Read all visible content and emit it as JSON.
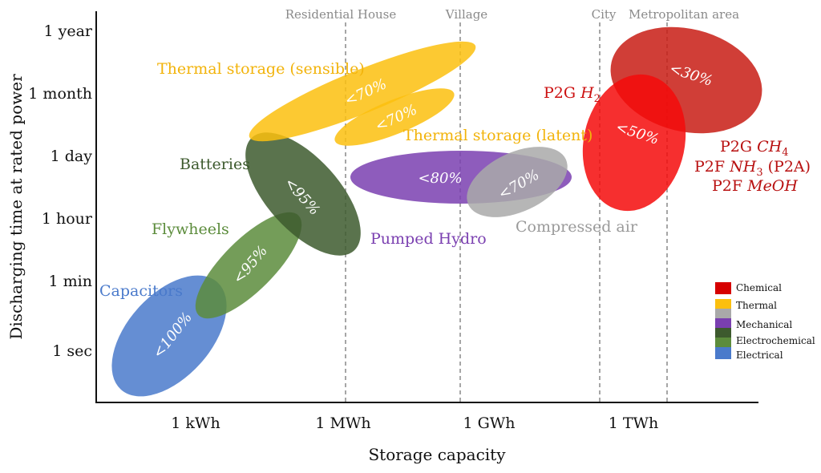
{
  "chart_data": {
    "type": "scatter",
    "xlabel": "Storage capacity",
    "ylabel": "Discharging time at rated power",
    "x_ticks": [
      "1 kWh",
      "1 MWh",
      "1 GWh",
      "1 TWh"
    ],
    "y_ticks": [
      "1 sec",
      "1 min",
      "1 hour",
      "1 day",
      "1 month",
      "1 year"
    ],
    "reference_lines": [
      "Residential House",
      "Village",
      "City",
      "Metropolitan area"
    ],
    "grid": false,
    "legend_position": "bottom-right",
    "legend": [
      {
        "name": "Chemical",
        "color": "#d60000"
      },
      {
        "name": "Thermal",
        "color": "#fbbf0e"
      },
      {
        "name": "",
        "color": "#a9a9a9"
      },
      {
        "name": "Mechanical",
        "color": "#7a3fb0"
      },
      {
        "name": "Electrochemical",
        "color": "#3d5a2e"
      },
      {
        "name": "",
        "color": "#5c8c3c"
      },
      {
        "name": "Electrical",
        "color": "#4a7acb"
      }
    ],
    "technologies": [
      {
        "id": "capacitors",
        "label": "Capacitors",
        "efficiency": "<100%",
        "category": "Electrical",
        "color": "#4a7acb",
        "label_color": "#4a7acb"
      },
      {
        "id": "flywheels",
        "label": "Flywheels",
        "efficiency": "<95%",
        "category": "Electrochemical",
        "color": "#5c8c3c",
        "label_color": "#5c8c3c"
      },
      {
        "id": "batteries",
        "label": "Batteries",
        "efficiency": "<95%",
        "category": "Electrochemical",
        "color": "#3d5a2e",
        "label_color": "#3d5a2e"
      },
      {
        "id": "thermal-sensible",
        "label": "Thermal storage (sensible)",
        "efficiency": "<70%",
        "category": "Thermal",
        "color": "#fbbf0e",
        "label_color": "#f2b30a"
      },
      {
        "id": "thermal-latent",
        "label": "Thermal storage (latent)",
        "efficiency": "<70%",
        "category": "Thermal",
        "color": "#fbbf0e",
        "label_color": "#f2b30a"
      },
      {
        "id": "pumped-hydro",
        "label": "Pumped Hydro",
        "efficiency": "<80%",
        "category": "Mechanical",
        "color": "#7a3fb0",
        "label_color": "#7a3fb0"
      },
      {
        "id": "compressed-air",
        "label": "Compressed air",
        "efficiency": "<70%",
        "category": "",
        "color": "#a9a9a9",
        "label_color": "#9a9a9a"
      },
      {
        "id": "p2g-h2",
        "label": "P2G H2",
        "efficiency": "<50%",
        "category": "Chemical",
        "color": "#f50a0a",
        "label_color": "#cc1010"
      },
      {
        "id": "p2g-ch4",
        "label": "P2G CH4",
        "efficiency": "<30%",
        "category": "Chemical",
        "color": "#c81c14",
        "label_color": "#b81010"
      }
    ],
    "extra_labels": [
      "P2F NH3 (P2A)",
      "P2F MeOH"
    ]
  }
}
